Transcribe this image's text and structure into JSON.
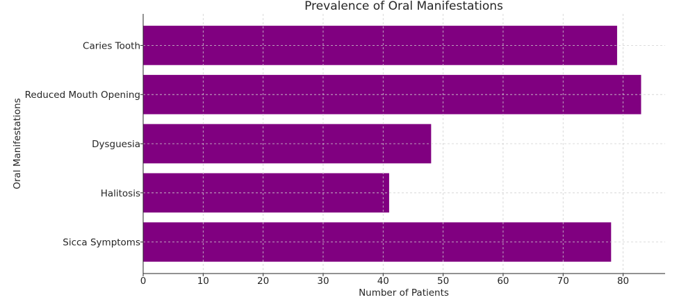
{
  "chart_data": {
    "type": "bar",
    "orientation": "horizontal",
    "title": "Prevalence of Oral Manifestations",
    "xlabel": "Number of Patients",
    "ylabel": "Oral Manifestations",
    "categories": [
      "Sicca Symptoms",
      "Halitosis",
      "Dysguesia",
      "Reduced Mouth Opening",
      "Caries Tooth"
    ],
    "values": [
      78,
      41,
      48,
      83,
      79
    ],
    "xlim": [
      0,
      87
    ],
    "xticks": [
      0,
      10,
      20,
      30,
      40,
      50,
      60,
      70,
      80
    ],
    "grid": true,
    "bar_color": "#800080",
    "grid_color": "#d0d0d0"
  }
}
